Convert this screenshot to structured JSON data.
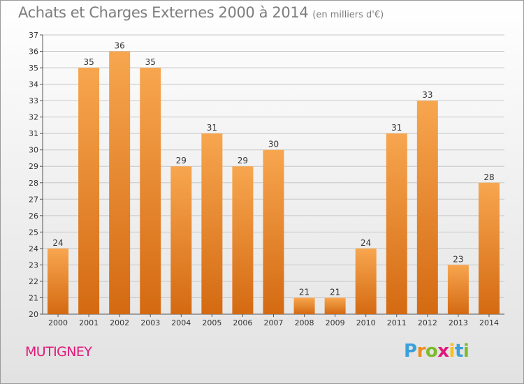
{
  "title": "Achats et Charges Externes 2000 à 2014",
  "unit": "(en milliers d'€)",
  "commune": "MUTIGNEY",
  "logo": {
    "text": "Proxiti",
    "letters": [
      {
        "char": "P",
        "color": "#3aa0dc"
      },
      {
        "char": "r",
        "color": "#f08a1c"
      },
      {
        "char": "o",
        "color": "#7dbb2c"
      },
      {
        "char": "x",
        "color": "#e0197a"
      },
      {
        "char": "i",
        "color": "#f4c21c"
      },
      {
        "char": "t",
        "color": "#3aa0dc"
      },
      {
        "char": "i",
        "color": "#7dbb2c"
      }
    ]
  },
  "colors": {
    "bar_top": "#f7a64f",
    "bar_bottom": "#d46a12",
    "grid": "#c8c8c8",
    "title": "#7d7d7d",
    "commune": "#e0197a"
  },
  "chart_data": {
    "type": "bar",
    "title": "Achats et Charges Externes 2000 à 2014",
    "subtitle": "(en milliers d'€)",
    "categories": [
      "2000",
      "2001",
      "2002",
      "2003",
      "2004",
      "2005",
      "2006",
      "2007",
      "2008",
      "2009",
      "2010",
      "2011",
      "2012",
      "2013",
      "2014"
    ],
    "values": [
      24,
      35,
      36,
      35,
      29,
      31,
      29,
      30,
      21,
      21,
      24,
      31,
      33,
      23,
      28
    ],
    "ylim": [
      20,
      37
    ],
    "yticks": [
      20,
      21,
      22,
      23,
      24,
      25,
      26,
      27,
      28,
      29,
      30,
      31,
      32,
      33,
      34,
      35,
      36,
      37
    ],
    "grid": true,
    "xlabel": "",
    "ylabel": ""
  }
}
